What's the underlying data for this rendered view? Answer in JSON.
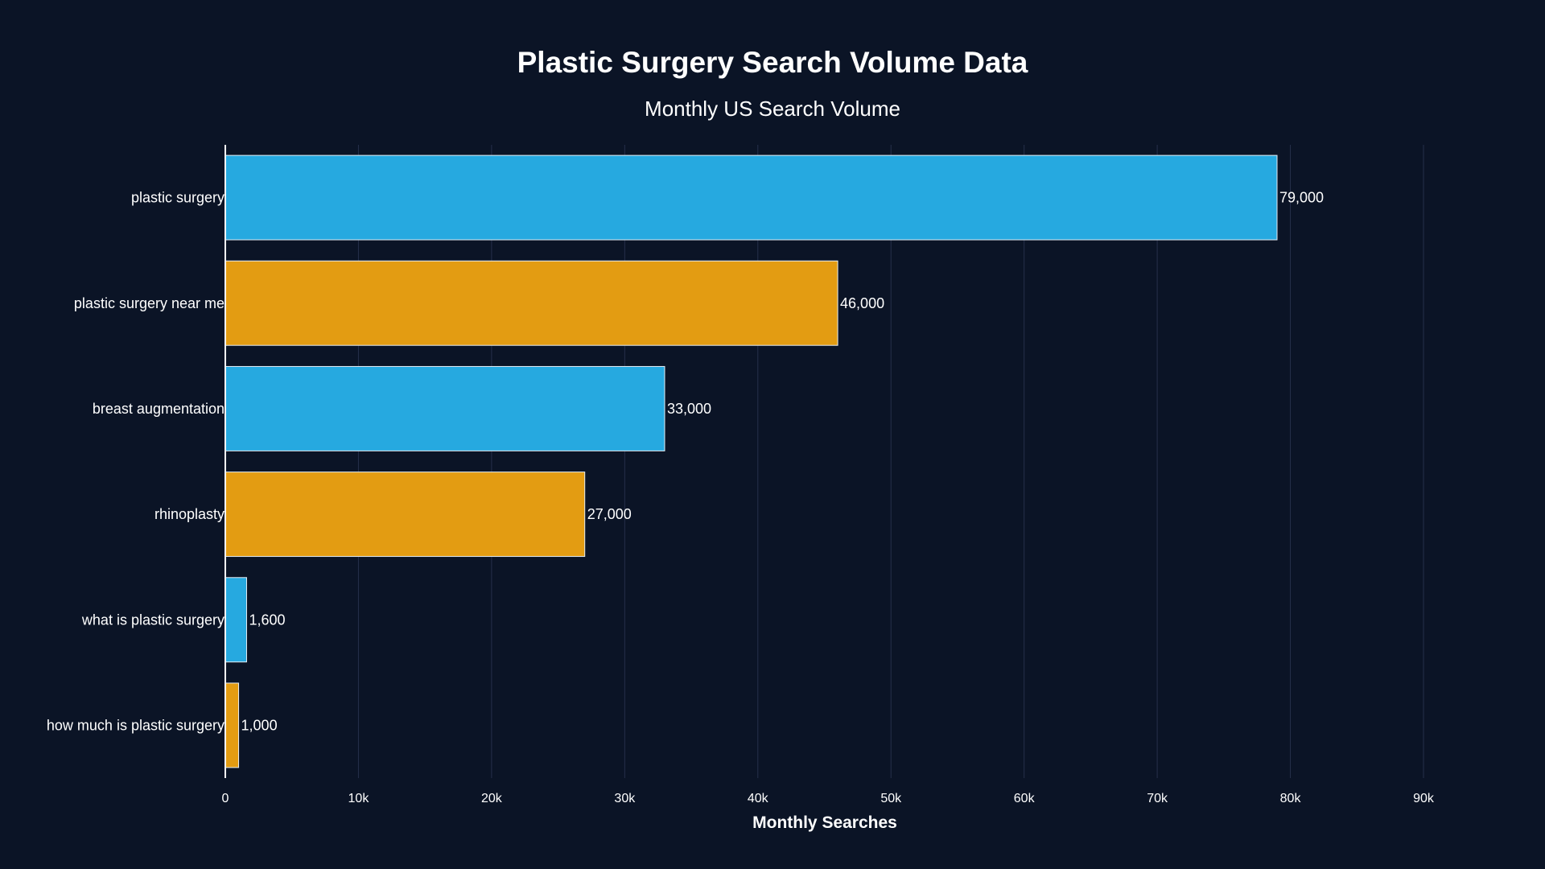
{
  "chart_data": {
    "type": "bar",
    "orientation": "horizontal",
    "title": "Plastic Surgery Search Volume Data",
    "subtitle": "Monthly US Search Volume",
    "xlabel": "Monthly Searches",
    "ylabel": "",
    "categories": [
      "plastic surgery",
      "plastic surgery near me",
      "breast augmentation",
      "rhinoplasty",
      "what is plastic surgery",
      "how much is plastic surgery"
    ],
    "values": [
      79000,
      46000,
      33000,
      27000,
      1600,
      1000
    ],
    "value_labels": [
      "79,000",
      "46,000",
      "33,000",
      "27,000",
      "1,600",
      "1,000"
    ],
    "bar_colors": [
      "#26a9e0",
      "#e39c12",
      "#26a9e0",
      "#e39c12",
      "#26a9e0",
      "#e39c12"
    ],
    "xlim": [
      0,
      90000
    ],
    "xticks": [
      0,
      10000,
      20000,
      30000,
      40000,
      50000,
      60000,
      70000,
      80000,
      90000
    ],
    "xtick_labels": [
      "0",
      "10k",
      "20k",
      "30k",
      "40k",
      "50k",
      "60k",
      "70k",
      "80k",
      "90k"
    ],
    "grid": "vertical",
    "background": "#0b1426"
  }
}
